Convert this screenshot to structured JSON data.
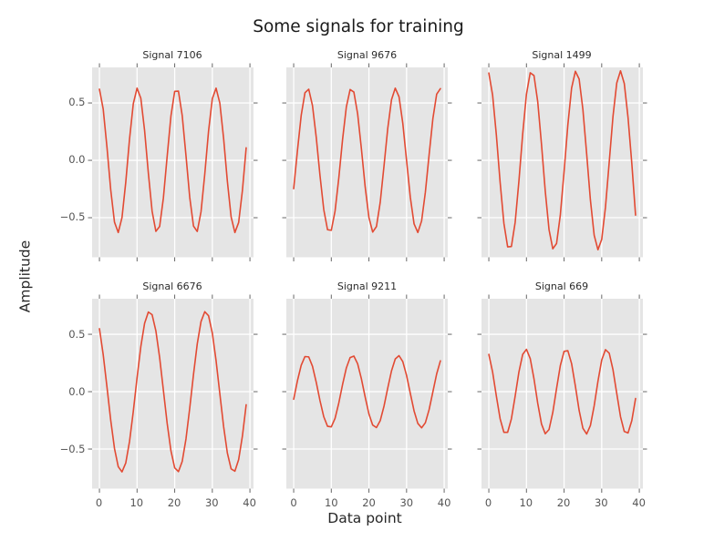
{
  "figure": {
    "style": "ggplot"
  },
  "colors": {
    "line": "#e24a33",
    "panel_bg": "#e5e5e5",
    "grid": "#ffffff",
    "tick_mark": "#666666",
    "tick_text": "#555555",
    "text": "#262626",
    "figure_bg": "#ffffff"
  },
  "chart_data": {
    "type": "line",
    "suptitle": "Some signals for training",
    "xlabel": "Data point",
    "ylabel": "Amplitude",
    "layout": "2 rows x 3 columns, shared axes",
    "grid": true,
    "legend": null,
    "xlim": [
      -1.95,
      40.95
    ],
    "ylim": [
      -0.845,
      0.81
    ],
    "x_ticks": [
      0,
      10,
      20,
      30,
      40
    ],
    "y_ticks": [
      0.5,
      0.0,
      -0.5
    ],
    "x_tick_labels": [
      "0",
      "10",
      "20",
      "30",
      "40"
    ],
    "y_tick_labels": [
      "0.5",
      "0.0",
      "−0.5"
    ],
    "x": [
      0,
      1,
      2,
      3,
      4,
      5,
      6,
      7,
      8,
      9,
      10,
      11,
      12,
      13,
      14,
      15,
      16,
      17,
      18,
      19,
      20,
      21,
      22,
      23,
      24,
      25,
      26,
      27,
      28,
      29,
      30,
      31,
      32,
      33,
      34,
      35,
      36,
      37,
      38,
      39
    ],
    "series": [
      {
        "name": "Signal 7106",
        "values": [
          0.62,
          0.447,
          0.115,
          -0.257,
          -0.539,
          -0.629,
          -0.498,
          -0.189,
          0.186,
          0.494,
          0.629,
          0.541,
          0.26,
          -0.111,
          -0.444,
          -0.619,
          -0.576,
          -0.327,
          0.035,
          0.386,
          0.601,
          0.603,
          0.39,
          0.042,
          -0.323,
          -0.573,
          -0.62,
          -0.448,
          -0.118,
          0.255,
          0.537,
          0.629,
          0.499,
          0.192,
          -0.183,
          -0.493,
          -0.629,
          -0.542,
          -0.263,
          0.109
        ]
      },
      {
        "name": "Signal 9676",
        "values": [
          -0.247,
          0.084,
          0.392,
          0.589,
          0.62,
          0.477,
          0.2,
          -0.134,
          -0.43,
          -0.605,
          -0.61,
          -0.442,
          -0.151,
          0.183,
          0.466,
          0.617,
          0.595,
          0.405,
          0.101,
          -0.231,
          -0.498,
          -0.625,
          -0.577,
          -0.366,
          -0.051,
          0.277,
          0.528,
          0.629,
          0.554,
          0.323,
          0.0,
          -0.322,
          -0.554,
          -0.629,
          -0.528,
          -0.278,
          0.05,
          0.364,
          0.576,
          0.625
        ]
      },
      {
        "name": "Signal 1499",
        "values": [
          0.761,
          0.57,
          0.221,
          -0.19,
          -0.548,
          -0.754,
          -0.751,
          -0.54,
          -0.18,
          0.23,
          0.576,
          0.763,
          0.739,
          0.51,
          0.139,
          -0.269,
          -0.604,
          -0.771,
          -0.725,
          -0.477,
          -0.098,
          0.308,
          0.63,
          0.776,
          0.709,
          0.444,
          0.057,
          -0.346,
          -0.653,
          -0.779,
          -0.689,
          -0.409,
          -0.015,
          0.383,
          0.674,
          0.78,
          0.67,
          0.373,
          -0.026,
          -0.478
        ]
      },
      {
        "name": "Signal 6676",
        "values": [
          0.549,
          0.323,
          0.041,
          -0.249,
          -0.495,
          -0.654,
          -0.699,
          -0.621,
          -0.433,
          -0.172,
          0.121,
          0.393,
          0.596,
          0.694,
          0.671,
          0.53,
          0.297,
          0.011,
          -0.276,
          -0.515,
          -0.664,
          -0.697,
          -0.608,
          -0.412,
          -0.143,
          0.15,
          0.417,
          0.611,
          0.697,
          0.662,
          0.511,
          0.27,
          -0.018,
          -0.303,
          -0.535,
          -0.673,
          -0.693,
          -0.592,
          -0.387,
          -0.114
        ]
      },
      {
        "name": "Signal 9211",
        "values": [
          -0.066,
          0.095,
          0.23,
          0.306,
          0.303,
          0.221,
          0.081,
          -0.079,
          -0.219,
          -0.302,
          -0.307,
          -0.232,
          -0.097,
          0.063,
          0.207,
          0.297,
          0.31,
          0.243,
          0.112,
          -0.047,
          -0.194,
          -0.291,
          -0.313,
          -0.253,
          -0.127,
          0.031,
          0.181,
          0.285,
          0.314,
          0.262,
          0.142,
          -0.015,
          -0.168,
          -0.277,
          -0.315,
          -0.271,
          -0.156,
          -0.001,
          0.154,
          0.269
        ]
      },
      {
        "name": "Signal 669",
        "values": [
          0.325,
          0.172,
          -0.038,
          -0.236,
          -0.354,
          -0.354,
          -0.236,
          -0.038,
          0.172,
          0.325,
          0.369,
          0.289,
          0.112,
          -0.102,
          -0.282,
          -0.367,
          -0.33,
          -0.181,
          0.027,
          0.227,
          0.351,
          0.357,
          0.244,
          0.049,
          -0.163,
          -0.319,
          -0.369,
          -0.295,
          -0.123,
          0.091,
          0.275,
          0.366,
          0.335,
          0.191,
          -0.016,
          -0.218,
          -0.347,
          -0.36,
          -0.253,
          -0.06
        ]
      }
    ]
  }
}
